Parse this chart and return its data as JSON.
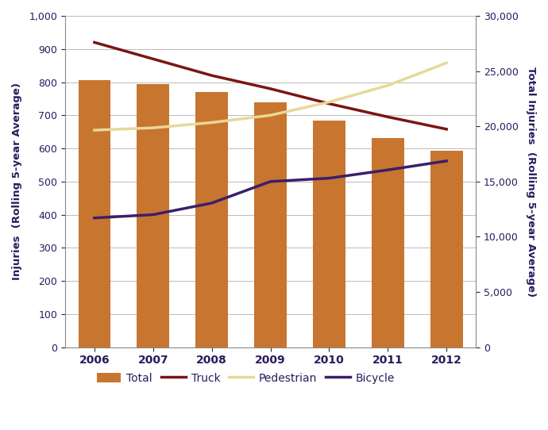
{
  "years": [
    2006,
    2007,
    2008,
    2009,
    2010,
    2011,
    2012
  ],
  "total_bars": [
    805,
    795,
    770,
    738,
    685,
    632,
    592
  ],
  "truck": [
    920,
    870,
    820,
    780,
    735,
    695,
    658
  ],
  "pedestrian": [
    655,
    662,
    678,
    700,
    740,
    790,
    858
  ],
  "bicycle": [
    390,
    400,
    435,
    500,
    510,
    535,
    562
  ],
  "bar_color": "#C87530",
  "truck_color": "#7B1515",
  "pedestrian_color": "#E8D898",
  "bicycle_color": "#3B1F6A",
  "left_ylabel": "Injuries  (Rolling 5-year Average)",
  "right_ylabel": "Total Injuries  (Rolling 5-year Average)",
  "ylim_left": [
    0,
    1000
  ],
  "ylim_right": [
    0,
    30000
  ],
  "yticks_left": [
    0,
    100,
    200,
    300,
    400,
    500,
    600,
    700,
    800,
    900,
    1000
  ],
  "yticks_right": [
    0,
    5000,
    10000,
    15000,
    20000,
    25000,
    30000
  ],
  "legend_labels": [
    "Total",
    "Truck",
    "Pedestrian",
    "Bicycle"
  ],
  "scale_factor": 30.0,
  "axis_label_color": "#2B1A5E",
  "tick_color": "#2B1A5E",
  "grid_color": "#BBBBBB",
  "spine_color": "#888888"
}
